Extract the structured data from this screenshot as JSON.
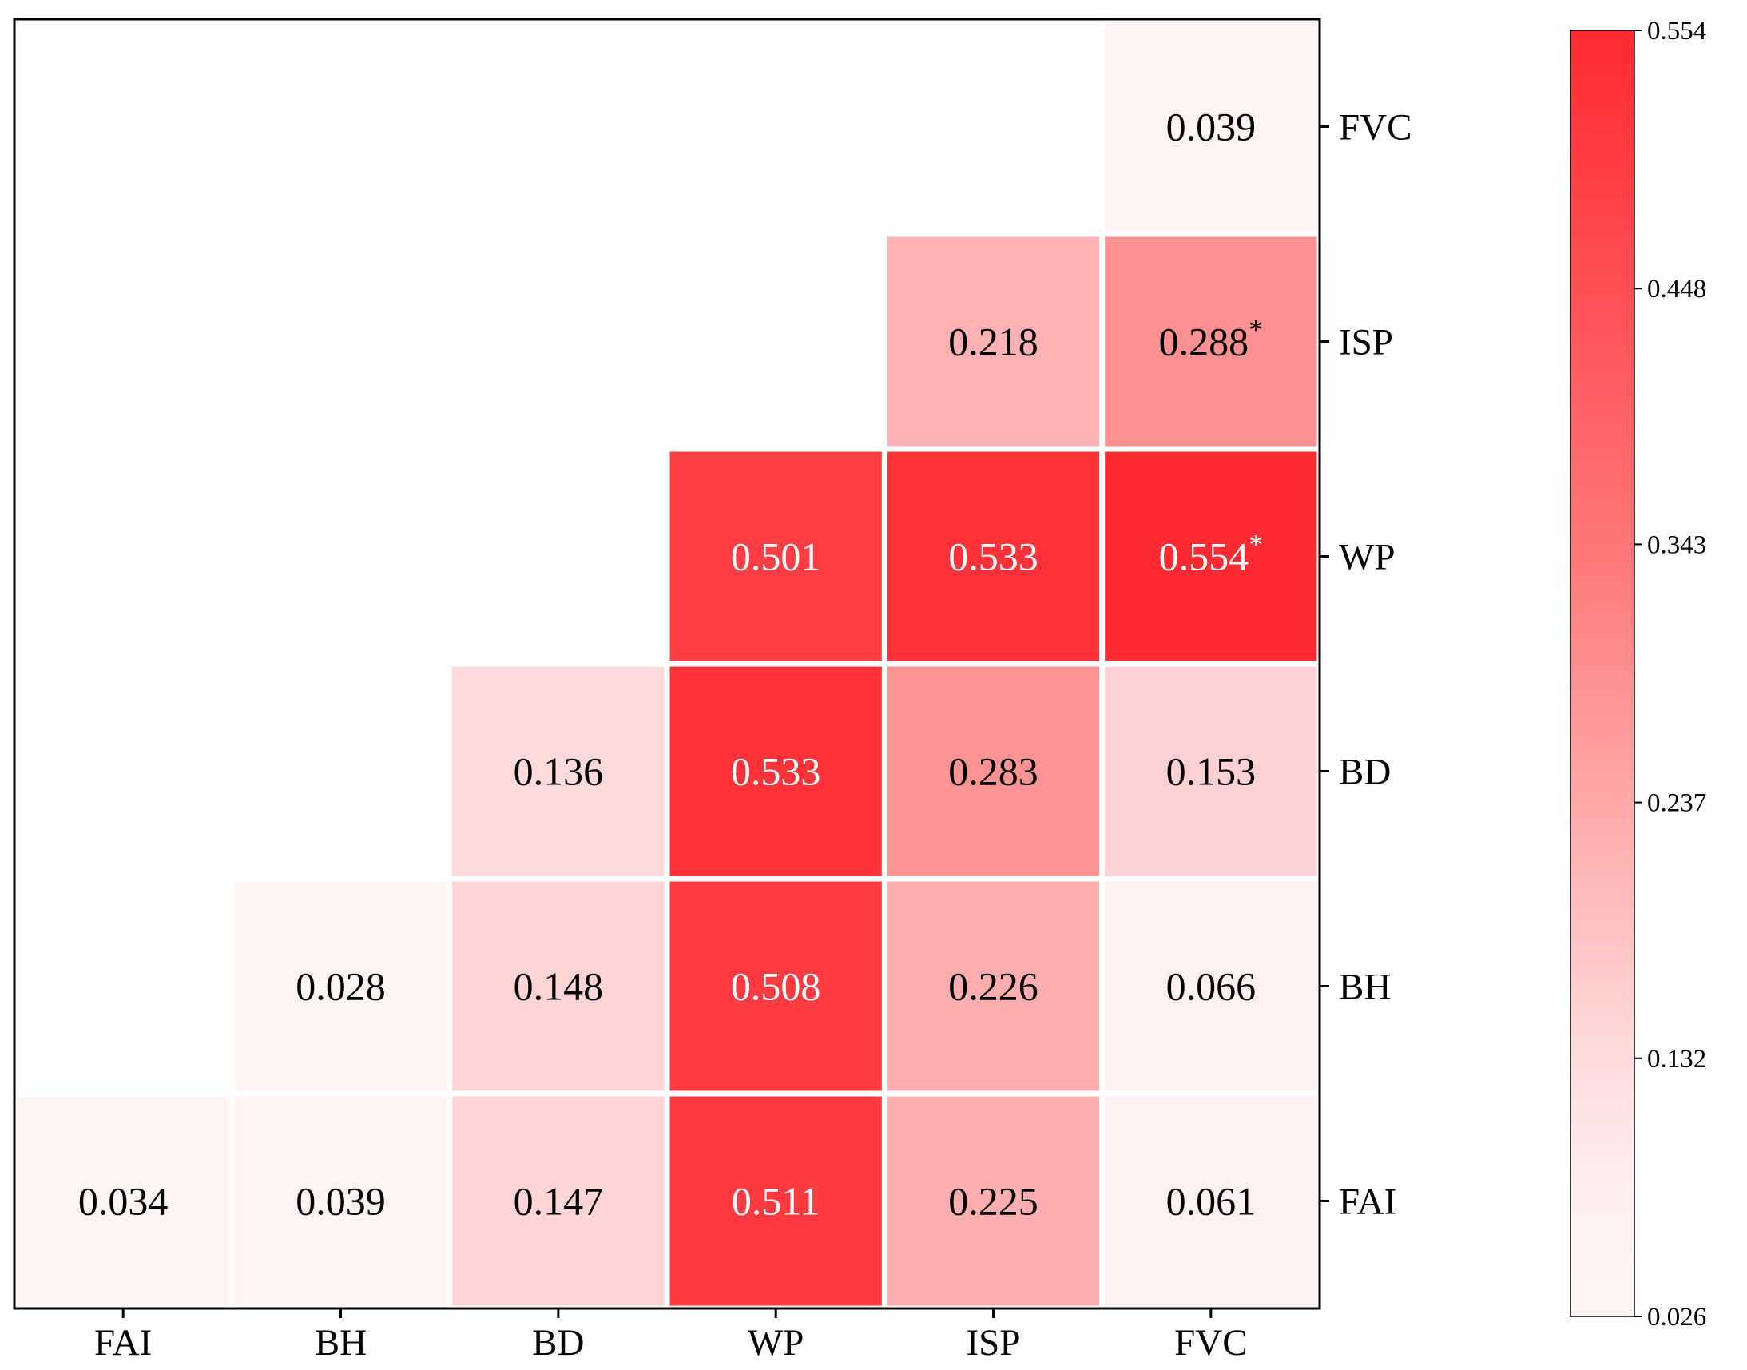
{
  "chart_data": {
    "type": "heatmap",
    "title": "",
    "xlabel": "",
    "ylabel": "",
    "x_categories": [
      "FAI",
      "BH",
      "BD",
      "WP",
      "ISP",
      "FVC"
    ],
    "y_categories": [
      "FAI",
      "BH",
      "BD",
      "WP",
      "ISP",
      "FVC"
    ],
    "y_axis_side": "right",
    "layout": "lower-triangle",
    "cells": [
      {
        "x": "FAI",
        "y": "FAI",
        "value": 0.034,
        "label": "0.034",
        "mark": ""
      },
      {
        "x": "BH",
        "y": "FAI",
        "value": 0.039,
        "label": "0.039",
        "mark": ""
      },
      {
        "x": "BD",
        "y": "FAI",
        "value": 0.147,
        "label": "0.147",
        "mark": ""
      },
      {
        "x": "WP",
        "y": "FAI",
        "value": 0.511,
        "label": "0.511",
        "mark": ""
      },
      {
        "x": "ISP",
        "y": "FAI",
        "value": 0.225,
        "label": "0.225",
        "mark": ""
      },
      {
        "x": "FVC",
        "y": "FAI",
        "value": 0.061,
        "label": "0.061",
        "mark": ""
      },
      {
        "x": "BH",
        "y": "BH",
        "value": 0.028,
        "label": "0.028",
        "mark": ""
      },
      {
        "x": "BD",
        "y": "BH",
        "value": 0.148,
        "label": "0.148",
        "mark": ""
      },
      {
        "x": "WP",
        "y": "BH",
        "value": 0.508,
        "label": "0.508",
        "mark": ""
      },
      {
        "x": "ISP",
        "y": "BH",
        "value": 0.226,
        "label": "0.226",
        "mark": ""
      },
      {
        "x": "FVC",
        "y": "BH",
        "value": 0.066,
        "label": "0.066",
        "mark": ""
      },
      {
        "x": "BD",
        "y": "BD",
        "value": 0.136,
        "label": "0.136",
        "mark": ""
      },
      {
        "x": "WP",
        "y": "BD",
        "value": 0.533,
        "label": "0.533",
        "mark": ""
      },
      {
        "x": "ISP",
        "y": "BD",
        "value": 0.283,
        "label": "0.283",
        "mark": ""
      },
      {
        "x": "FVC",
        "y": "BD",
        "value": 0.153,
        "label": "0.153",
        "mark": ""
      },
      {
        "x": "WP",
        "y": "WP",
        "value": 0.501,
        "label": "0.501",
        "mark": ""
      },
      {
        "x": "ISP",
        "y": "WP",
        "value": 0.533,
        "label": "0.533",
        "mark": ""
      },
      {
        "x": "FVC",
        "y": "WP",
        "value": 0.554,
        "label": "0.554",
        "mark": "*"
      },
      {
        "x": "ISP",
        "y": "ISP",
        "value": 0.218,
        "label": "0.218",
        "mark": ""
      },
      {
        "x": "FVC",
        "y": "ISP",
        "value": 0.288,
        "label": "0.288",
        "mark": "*"
      },
      {
        "x": "FVC",
        "y": "FVC",
        "value": 0.039,
        "label": "0.039",
        "mark": ""
      }
    ],
    "colorbar": {
      "min": 0.026,
      "max": 0.554,
      "ticks": [
        "0.554",
        "0.448",
        "0.343",
        "0.237",
        "0.132",
        "0.026"
      ],
      "colors": {
        "low": "#fff5f5",
        "mid": "#ff8c8c",
        "high": "#ff2a32"
      }
    },
    "grid": false,
    "legend": "colorbar-right"
  }
}
